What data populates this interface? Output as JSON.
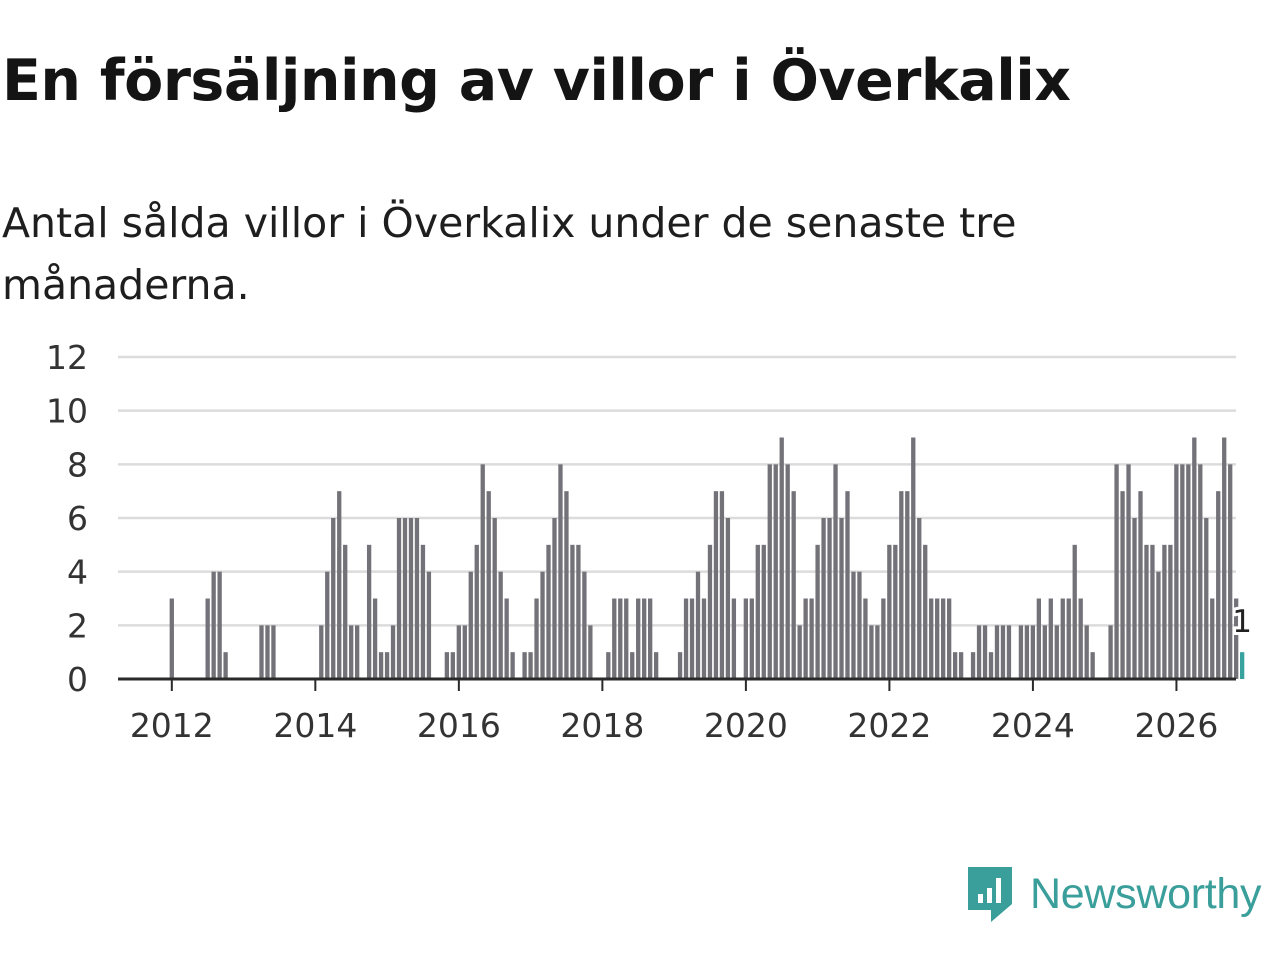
{
  "title": "En försäljning av villor i Överkalix",
  "subtitle": "Antal sålda villor i Överkalix under de senaste tre månaderna.",
  "brand": {
    "name": "Newsworthy",
    "icon": "newsworthy-logo-icon",
    "color": "#3a9e9a"
  },
  "chart_data": {
    "type": "bar",
    "title": "En försäljning av villor i Överkalix",
    "xlabel": "",
    "ylabel": "",
    "ylim": [
      0,
      12
    ],
    "yticks": [
      0,
      2,
      4,
      6,
      8,
      10,
      12
    ],
    "xlim": [
      2011.25,
      2026.83
    ],
    "xticks": [
      2012,
      2014,
      2016,
      2018,
      2020,
      2022,
      2024,
      2026
    ],
    "x_start": 2011.333,
    "x_step": 0.08333,
    "bar_color": "#737278",
    "highlight_color": "#38a39e",
    "highlight_label": "1",
    "grid": true,
    "values": [
      0,
      0,
      0,
      0,
      0,
      0,
      0,
      0,
      3,
      0,
      0,
      0,
      0,
      0,
      3,
      4,
      4,
      1,
      0,
      0,
      0,
      0,
      0,
      2,
      2,
      2,
      0,
      0,
      0,
      0,
      0,
      0,
      0,
      2,
      4,
      6,
      7,
      5,
      2,
      2,
      0,
      5,
      3,
      1,
      1,
      2,
      6,
      6,
      6,
      6,
      5,
      4,
      0,
      0,
      1,
      1,
      2,
      2,
      4,
      5,
      8,
      7,
      6,
      4,
      3,
      1,
      0,
      1,
      1,
      3,
      4,
      5,
      6,
      8,
      7,
      5,
      5,
      4,
      2,
      0,
      0,
      1,
      3,
      3,
      3,
      1,
      3,
      3,
      3,
      1,
      0,
      0,
      0,
      1,
      3,
      3,
      4,
      3,
      5,
      7,
      7,
      6,
      3,
      0,
      3,
      3,
      5,
      5,
      8,
      8,
      9,
      8,
      7,
      2,
      3,
      3,
      5,
      6,
      6,
      8,
      6,
      7,
      4,
      4,
      3,
      2,
      2,
      3,
      5,
      5,
      7,
      7,
      9,
      6,
      5,
      3,
      3,
      3,
      3,
      1,
      1,
      0,
      1,
      2,
      2,
      1,
      2,
      2,
      2,
      0,
      2,
      2,
      2,
      3,
      2,
      3,
      2,
      3,
      3,
      5,
      3,
      2,
      1,
      0,
      0,
      2,
      8,
      7,
      8,
      6,
      7,
      5,
      5,
      4,
      5,
      5,
      8,
      8,
      8,
      9,
      8,
      6,
      3,
      7,
      9,
      8,
      3,
      1
    ]
  }
}
